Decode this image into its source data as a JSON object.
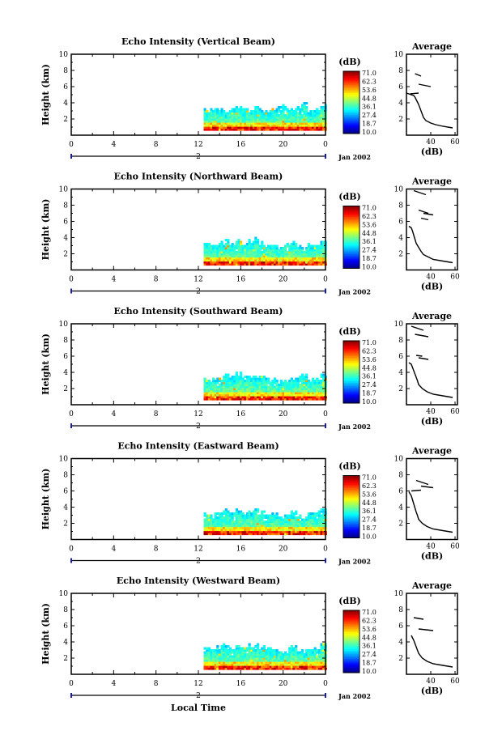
{
  "chart_data": [
    {
      "type": "heatmap",
      "title": "Echo Intensity (Vertical Beam)",
      "ylabel": "Height (km)",
      "x_ticks": [
        "0",
        "4",
        "8",
        "12",
        "16",
        "20",
        "0"
      ],
      "y_ticks": [
        "2",
        "4",
        "6",
        "8",
        "10"
      ],
      "x_range": [
        0,
        24
      ],
      "y_range": [
        0,
        10
      ],
      "date_marker": "2",
      "date_label": "Jan 2002",
      "data_start_hour": 12.5,
      "top_profile_km": [
        3.0,
        3.2,
        3.1,
        2.9,
        3.2,
        3.4,
        3.1,
        3.0,
        3.3,
        3.0,
        2.8,
        3.1,
        3.6,
        3.2,
        3.0,
        3.4,
        4.0,
        2.9,
        3.2,
        3.7
      ],
      "colorbar": {
        "unit": "(dB)",
        "labels": [
          "71.0",
          "62.3",
          "53.6",
          "44.8",
          "36.1",
          "27.4",
          "18.7",
          "10.0"
        ],
        "range": [
          10.0,
          71.0
        ]
      },
      "profile": {
        "title": "Average",
        "xlabel": "(dB)",
        "x_ticks": [
          "40",
          "60"
        ],
        "y_ticks": [
          "2",
          "4",
          "6",
          "8",
          "10"
        ],
        "x_range": [
          20,
          62
        ],
        "y_range": [
          0,
          10
        ],
        "points": [
          [
            58,
            0.9
          ],
          [
            50,
            1.1
          ],
          [
            44,
            1.3
          ],
          [
            40,
            1.5
          ],
          [
            36,
            1.8
          ],
          [
            34,
            2.2
          ],
          [
            33,
            2.6
          ],
          [
            32,
            3.0
          ],
          [
            31,
            3.4
          ],
          [
            30,
            3.8
          ],
          [
            29,
            4.1
          ],
          [
            28,
            4.4
          ],
          [
            27,
            4.7
          ],
          [
            26,
            4.9
          ],
          [
            22,
            5.1
          ],
          [
            20,
            5.2
          ]
        ],
        "spikes": [
          [
            [
              27,
              7.6
            ],
            [
              32,
              7.3
            ]
          ],
          [
            [
              30,
              6.3
            ],
            [
              40,
              6.0
            ]
          ],
          [
            [
              23,
              5.1
            ],
            [
              30,
              5.2
            ]
          ]
        ]
      }
    },
    {
      "type": "heatmap",
      "title": "Echo Intensity (Northward Beam)",
      "ylabel": "Height (km)",
      "x_ticks": [
        "0",
        "4",
        "8",
        "12",
        "16",
        "20",
        "0"
      ],
      "y_ticks": [
        "2",
        "4",
        "6",
        "8",
        "10"
      ],
      "x_range": [
        0,
        24
      ],
      "y_range": [
        0,
        10
      ],
      "date_marker": "2",
      "date_label": "Jan 2002",
      "data_start_hour": 12.5,
      "top_profile_km": [
        3.0,
        3.1,
        3.3,
        3.4,
        3.1,
        3.6,
        3.2,
        3.5,
        3.8,
        3.2,
        3.0,
        2.9,
        2.7,
        3.0,
        3.4,
        2.8,
        2.6,
        3.0,
        3.2,
        3.6
      ],
      "colorbar": {
        "unit": "(dB)",
        "labels": [
          "71.0",
          "62.3",
          "53.6",
          "44.8",
          "36.1",
          "27.4",
          "18.7",
          "10.0"
        ],
        "range": [
          10.0,
          71.0
        ]
      },
      "profile": {
        "title": "Average",
        "xlabel": "(dB)",
        "x_ticks": [
          "40",
          "60"
        ],
        "y_ticks": [
          "2",
          "4",
          "6",
          "8",
          "10"
        ],
        "x_range": [
          20,
          62
        ],
        "y_range": [
          0,
          10
        ],
        "points": [
          [
            58,
            0.9
          ],
          [
            50,
            1.1
          ],
          [
            42,
            1.3
          ],
          [
            38,
            1.6
          ],
          [
            34,
            1.9
          ],
          [
            32,
            2.3
          ],
          [
            30,
            2.8
          ],
          [
            28,
            3.3
          ],
          [
            27,
            3.8
          ],
          [
            26,
            4.3
          ],
          [
            25,
            4.8
          ],
          [
            24,
            5.2
          ],
          [
            22,
            5.4
          ]
        ],
        "spikes": [
          [
            [
              26,
              9.8
            ],
            [
              36,
              9.3
            ]
          ],
          [
            [
              30,
              7.4
            ],
            [
              38,
              7.0
            ]
          ],
          [
            [
              32,
              6.4
            ],
            [
              38,
              6.2
            ]
          ],
          [
            [
              34,
              7.0
            ],
            [
              42,
              6.8
            ]
          ]
        ]
      }
    },
    {
      "type": "heatmap",
      "title": "Echo Intensity (Southward Beam)",
      "ylabel": "Height (km)",
      "x_ticks": [
        "0",
        "4",
        "8",
        "12",
        "16",
        "20",
        "0"
      ],
      "y_ticks": [
        "2",
        "4",
        "6",
        "8",
        "10"
      ],
      "x_range": [
        0,
        24
      ],
      "y_range": [
        0,
        10
      ],
      "date_marker": "2",
      "date_label": "Jan 2002",
      "data_start_hour": 12.5,
      "top_profile_km": [
        3.2,
        3.0,
        3.3,
        3.6,
        3.4,
        3.7,
        3.5,
        3.3,
        3.6,
        3.4,
        3.2,
        3.1,
        2.8,
        3.0,
        3.2,
        3.4,
        3.5,
        2.9,
        3.1,
        3.6
      ],
      "colorbar": {
        "unit": "(dB)",
        "labels": [
          "71.0",
          "62.3",
          "53.6",
          "44.8",
          "36.1",
          "27.4",
          "18.7",
          "10.0"
        ],
        "range": [
          10.0,
          71.0
        ]
      },
      "profile": {
        "title": "Average",
        "xlabel": "(dB)",
        "x_ticks": [
          "40",
          "60"
        ],
        "y_ticks": [
          "2",
          "4",
          "6",
          "8",
          "10"
        ],
        "x_range": [
          20,
          62
        ],
        "y_range": [
          0,
          10
        ],
        "points": [
          [
            58,
            0.9
          ],
          [
            50,
            1.1
          ],
          [
            42,
            1.3
          ],
          [
            37,
            1.6
          ],
          [
            33,
            2.0
          ],
          [
            30,
            2.5
          ],
          [
            29,
            3.0
          ],
          [
            28,
            3.4
          ],
          [
            27,
            3.8
          ],
          [
            26,
            4.2
          ],
          [
            25,
            4.6
          ],
          [
            24,
            5.0
          ],
          [
            22,
            5.2
          ]
        ],
        "spikes": [
          [
            [
              24,
              9.7
            ],
            [
              34,
              9.2
            ]
          ],
          [
            [
              27,
              8.7
            ],
            [
              38,
              8.4
            ]
          ],
          [
            [
              28,
              6.1
            ],
            [
              33,
              6.0
            ]
          ],
          [
            [
              30,
              5.8
            ],
            [
              38,
              5.6
            ]
          ]
        ]
      }
    },
    {
      "type": "heatmap",
      "title": "Echo Intensity (Eastward Beam)",
      "ylabel": "Height (km)",
      "x_ticks": [
        "0",
        "4",
        "8",
        "12",
        "16",
        "20",
        "0"
      ],
      "y_ticks": [
        "2",
        "4",
        "6",
        "8",
        "10"
      ],
      "x_range": [
        0,
        24
      ],
      "y_range": [
        0,
        10
      ],
      "date_marker": "2",
      "date_label": "Jan 2002",
      "data_start_hour": 12.5,
      "top_profile_km": [
        3.1,
        3.0,
        3.2,
        3.4,
        3.2,
        3.6,
        3.3,
        3.4,
        3.8,
        3.3,
        3.1,
        2.9,
        2.7,
        3.0,
        3.3,
        2.8,
        2.6,
        3.1,
        3.3,
        3.7
      ],
      "colorbar": {
        "unit": "(dB)",
        "labels": [
          "71.0",
          "62.3",
          "53.6",
          "44.8",
          "36.1",
          "27.4",
          "18.7",
          "10.0"
        ],
        "range": [
          10.0,
          71.0
        ]
      },
      "profile": {
        "title": "Average",
        "xlabel": "(dB)",
        "x_ticks": [
          "40",
          "60"
        ],
        "y_ticks": [
          "2",
          "4",
          "6",
          "8",
          "10"
        ],
        "x_range": [
          20,
          62
        ],
        "y_range": [
          0,
          10
        ],
        "points": [
          [
            58,
            0.9
          ],
          [
            50,
            1.1
          ],
          [
            42,
            1.3
          ],
          [
            37,
            1.6
          ],
          [
            33,
            2.0
          ],
          [
            30,
            2.5
          ],
          [
            29,
            3.0
          ],
          [
            28,
            3.4
          ],
          [
            27,
            3.9
          ],
          [
            26,
            4.4
          ],
          [
            25,
            4.9
          ],
          [
            24,
            5.4
          ],
          [
            22,
            5.9
          ]
        ],
        "spikes": [
          [
            [
              28,
              7.3
            ],
            [
              38,
              6.8
            ]
          ],
          [
            [
              32,
              6.6
            ],
            [
              42,
              6.4
            ]
          ],
          [
            [
              24,
              6.0
            ],
            [
              32,
              6.1
            ]
          ]
        ]
      }
    },
    {
      "type": "heatmap",
      "title": "Echo Intensity (Westward Beam)",
      "ylabel": "Height (km)",
      "x_ticks": [
        "0",
        "4",
        "8",
        "12",
        "16",
        "20",
        "0"
      ],
      "y_ticks": [
        "2",
        "4",
        "6",
        "8",
        "10"
      ],
      "x_range": [
        0,
        24
      ],
      "y_range": [
        0,
        10
      ],
      "date_marker": "2",
      "date_label": "Jan 2002",
      "xlabel": "Local Time",
      "data_start_hour": 12.5,
      "top_profile_km": [
        3.0,
        3.1,
        3.3,
        3.5,
        3.2,
        3.6,
        3.3,
        3.4,
        3.7,
        3.2,
        3.0,
        2.9,
        2.7,
        3.0,
        3.3,
        2.8,
        2.7,
        3.0,
        3.2,
        3.6
      ],
      "colorbar": {
        "unit": "(dB)",
        "labels": [
          "71.0",
          "62.3",
          "53.6",
          "44.8",
          "36.1",
          "27.4",
          "18.7",
          "10.0"
        ],
        "range": [
          10.0,
          71.0
        ]
      },
      "profile": {
        "title": "Average",
        "xlabel": "(dB)",
        "x_ticks": [
          "40",
          "60"
        ],
        "y_ticks": [
          "2",
          "4",
          "6",
          "8",
          "10"
        ],
        "x_range": [
          20,
          62
        ],
        "y_range": [
          0,
          10
        ],
        "points": [
          [
            58,
            0.9
          ],
          [
            50,
            1.1
          ],
          [
            42,
            1.3
          ],
          [
            37,
            1.6
          ],
          [
            33,
            2.0
          ],
          [
            30,
            2.6
          ],
          [
            29,
            3.0
          ],
          [
            28,
            3.4
          ],
          [
            27,
            3.8
          ],
          [
            26,
            4.2
          ],
          [
            25,
            4.5
          ],
          [
            24,
            4.8
          ]
        ],
        "spikes": [
          [
            [
              26,
              7.0
            ],
            [
              34,
              6.8
            ]
          ],
          [
            [
              30,
              5.6
            ],
            [
              42,
              5.4
            ]
          ]
        ]
      }
    }
  ]
}
